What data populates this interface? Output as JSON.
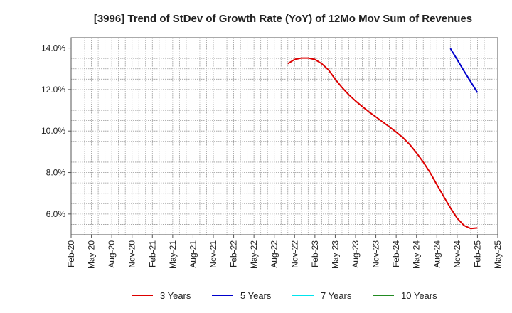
{
  "chart_data": {
    "type": "line",
    "title": "[3996]  Trend of StDev of Growth Rate (YoY) of 12Mo Mov Sum of Revenues",
    "xlabel": "",
    "ylabel": "",
    "x_ticks": [
      "Feb-20",
      "May-20",
      "Aug-20",
      "Nov-20",
      "Feb-21",
      "May-21",
      "Aug-21",
      "Nov-21",
      "Feb-22",
      "May-22",
      "Aug-22",
      "Nov-22",
      "Feb-23",
      "May-23",
      "Aug-23",
      "Nov-23",
      "Feb-24",
      "May-24",
      "Aug-24",
      "Nov-24",
      "Feb-25",
      "May-25"
    ],
    "y_ticks": [
      "6.0%",
      "8.0%",
      "10.0%",
      "12.0%",
      "14.0%"
    ],
    "y_tick_values": [
      6,
      8,
      10,
      12,
      14
    ],
    "ylim": [
      5.0,
      14.5
    ],
    "grid": true,
    "legend_position": "bottom",
    "series": [
      {
        "name": "3 Years",
        "color": "#dd0000",
        "points": [
          {
            "x": "Oct-22",
            "y": 13.25
          },
          {
            "x": "Nov-22",
            "y": 13.45
          },
          {
            "x": "Dec-22",
            "y": 13.52
          },
          {
            "x": "Jan-23",
            "y": 13.52
          },
          {
            "x": "Feb-23",
            "y": 13.45
          },
          {
            "x": "Mar-23",
            "y": 13.25
          },
          {
            "x": "Apr-23",
            "y": 12.95
          },
          {
            "x": "May-23",
            "y": 12.5
          },
          {
            "x": "Jun-23",
            "y": 12.1
          },
          {
            "x": "Jul-23",
            "y": 11.75
          },
          {
            "x": "Aug-23",
            "y": 11.45
          },
          {
            "x": "Sep-23",
            "y": 11.18
          },
          {
            "x": "Oct-23",
            "y": 10.92
          },
          {
            "x": "Nov-23",
            "y": 10.68
          },
          {
            "x": "Dec-23",
            "y": 10.44
          },
          {
            "x": "Jan-24",
            "y": 10.2
          },
          {
            "x": "Feb-24",
            "y": 9.95
          },
          {
            "x": "Mar-24",
            "y": 9.68
          },
          {
            "x": "Apr-24",
            "y": 9.35
          },
          {
            "x": "May-24",
            "y": 8.95
          },
          {
            "x": "Jun-24",
            "y": 8.5
          },
          {
            "x": "Jul-24",
            "y": 8.0
          },
          {
            "x": "Aug-24",
            "y": 7.42
          },
          {
            "x": "Sep-24",
            "y": 6.85
          },
          {
            "x": "Oct-24",
            "y": 6.3
          },
          {
            "x": "Nov-24",
            "y": 5.8
          },
          {
            "x": "Dec-24",
            "y": 5.45
          },
          {
            "x": "Jan-25",
            "y": 5.3
          },
          {
            "x": "Feb-25",
            "y": 5.33
          }
        ]
      },
      {
        "name": "5 Years",
        "color": "#0000cc",
        "points": [
          {
            "x": "Oct-24",
            "y": 13.98
          },
          {
            "x": "Nov-24",
            "y": 13.45
          },
          {
            "x": "Dec-24",
            "y": 12.9
          },
          {
            "x": "Jan-25",
            "y": 12.38
          },
          {
            "x": "Feb-25",
            "y": 11.85
          }
        ]
      },
      {
        "name": "7 Years",
        "color": "#00e5ee",
        "points": []
      },
      {
        "name": "10 Years",
        "color": "#228b22",
        "points": []
      }
    ]
  }
}
